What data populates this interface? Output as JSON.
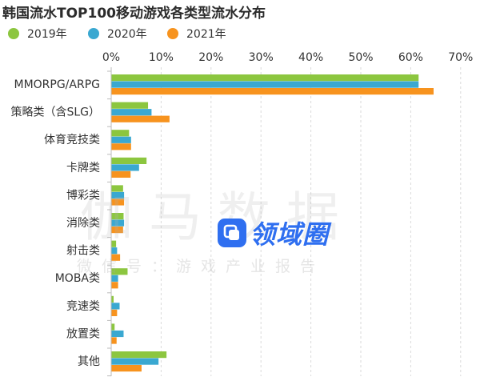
{
  "chart_data": {
    "type": "bar",
    "orientation": "horizontal",
    "title": "韩国流水TOP100移动游戏各类型流水分布",
    "categories": [
      "MMORPG/ARPG",
      "策略类（含SLG）",
      "体育竞技类",
      "卡牌类",
      "博彩类",
      "消除类",
      "射击类",
      "MOBA类",
      "竞速类",
      "放置类",
      "其他"
    ],
    "series": [
      {
        "name": "2019年",
        "color": "#8cc63f",
        "values": [
          61.5,
          7.3,
          3.5,
          7.0,
          2.3,
          2.4,
          0.9,
          3.2,
          0.4,
          0.6,
          11.0
        ]
      },
      {
        "name": "2020年",
        "color": "#3aa8d1",
        "values": [
          61.5,
          8.0,
          3.9,
          5.5,
          2.5,
          2.5,
          1.1,
          1.3,
          1.6,
          2.4,
          9.4
        ]
      },
      {
        "name": "2021年",
        "color": "#f7931e",
        "values": [
          64.5,
          11.6,
          3.9,
          3.8,
          2.5,
          2.3,
          1.7,
          1.3,
          1.1,
          1.0,
          6.0
        ]
      }
    ],
    "xlim": [
      0,
      70
    ],
    "xticks": [
      "0%",
      "10%",
      "20%",
      "30%",
      "40%",
      "50%",
      "60%",
      "70%"
    ],
    "grid": true,
    "legend_position": "top-left"
  },
  "watermark": {
    "main": "伽马数据",
    "sub": "微信号：游戏产业报告",
    "logo_text": "领域圈",
    "logo_icon": "window-icon"
  }
}
